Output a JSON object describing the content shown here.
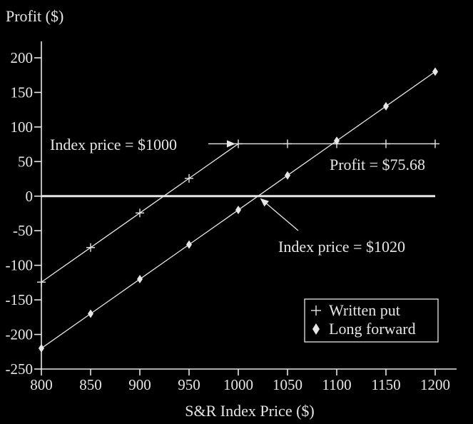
{
  "chart_data": {
    "type": "line",
    "ylabel": "Profit ($)",
    "xlabel": "S&R Index Price ($)",
    "x": [
      800,
      850,
      900,
      950,
      1000,
      1050,
      1100,
      1150,
      1200
    ],
    "xlim": [
      800,
      1200
    ],
    "ylim": [
      -250,
      200
    ],
    "x_ticks": [
      "800",
      "850",
      "900",
      "950",
      "1000",
      "1050",
      "1100",
      "1150",
      "1200"
    ],
    "y_ticks": [
      "200",
      "150",
      "100",
      "50",
      "0",
      "-50",
      "-100",
      "-150",
      "-200",
      "-250"
    ],
    "y_tick_values": [
      200,
      150,
      100,
      50,
      0,
      -50,
      -100,
      -150,
      -200,
      -250
    ],
    "grid": false,
    "legend_position": "bottom-right",
    "series": [
      {
        "name": "Written put",
        "marker": "plus",
        "values": [
          -124.32,
          -74.32,
          -24.32,
          25.68,
          75.68,
          75.68,
          75.68,
          75.68,
          75.68
        ]
      },
      {
        "name": "Long forward",
        "marker": "diamond",
        "values": [
          -220,
          -170,
          -120,
          -70,
          -20,
          30,
          80,
          130,
          180
        ]
      }
    ],
    "annotations": [
      {
        "text": "Index price = $1000",
        "x": 1000,
        "y": 75.68
      },
      {
        "text": "Profit = $75.68",
        "x": 1100,
        "y": 75.68
      },
      {
        "text": "Index price = $1020",
        "x": 1020,
        "y": 0
      }
    ]
  }
}
